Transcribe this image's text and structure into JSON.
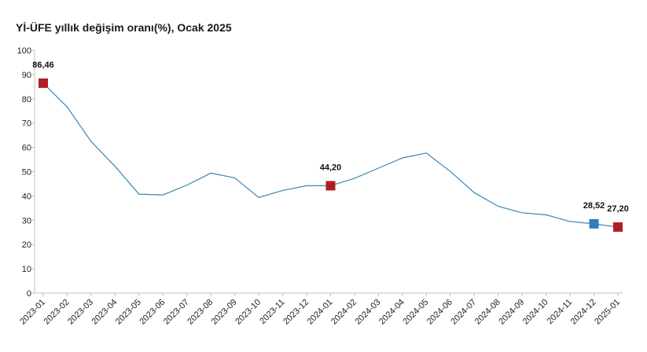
{
  "colors": {
    "line": "#3a87b5",
    "marker_red": "#b01e23",
    "marker_blue": "#2f7fbf",
    "axis": "#bfbfbf"
  },
  "chart_data": {
    "type": "line",
    "title": "Yİ-ÜFE yıllık değişim oranı(%), Ocak 2025",
    "xlabel": "",
    "ylabel": "",
    "ylim": [
      0,
      100
    ],
    "yticks": [
      0,
      10,
      20,
      30,
      40,
      50,
      60,
      70,
      80,
      90,
      100
    ],
    "grid": false,
    "legend": "none",
    "categories": [
      "2023-01",
      "2023-02",
      "2023-03",
      "2023-04",
      "2023-05",
      "2023-06",
      "2023-07",
      "2023-08",
      "2023-09",
      "2023-10",
      "2023-11",
      "2023-12",
      "2024-01",
      "2024-02",
      "2024-03",
      "2024-04",
      "2024-05",
      "2024-06",
      "2024-07",
      "2024-08",
      "2024-09",
      "2024-10",
      "2024-11",
      "2024-12",
      "2025-01"
    ],
    "series": [
      {
        "values": [
          86.46,
          76.6,
          62.43,
          52.16,
          40.76,
          40.42,
          44.5,
          49.41,
          47.44,
          39.39,
          42.25,
          44.22,
          44.2,
          47.29,
          51.47,
          55.66,
          57.68,
          50.09,
          41.37,
          35.75,
          33.09,
          32.24,
          29.47,
          28.52,
          27.2
        ]
      }
    ],
    "highlighted_points": [
      {
        "category": "2023-01",
        "value": 86.46,
        "label": "86,46",
        "marker": "red"
      },
      {
        "category": "2024-01",
        "value": 44.2,
        "label": "44,20",
        "marker": "red"
      },
      {
        "category": "2024-12",
        "value": 28.52,
        "label": "28,52",
        "marker": "blue"
      },
      {
        "category": "2025-01",
        "value": 27.2,
        "label": "27,20",
        "marker": "red"
      }
    ]
  }
}
